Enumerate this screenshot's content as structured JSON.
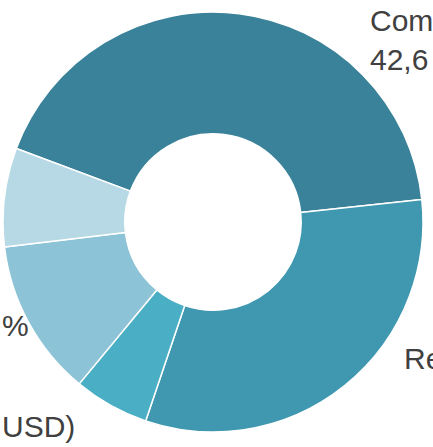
{
  "chart_data": {
    "type": "pie",
    "categories": [
      "Com",
      "Re",
      null,
      null,
      null
    ],
    "values": [
      42.6,
      31.9,
      5.8,
      12.1,
      7.6
    ],
    "value_labels": [
      "42,6",
      null,
      null,
      null,
      null
    ],
    "colors": [
      "#3a8299",
      "#3f98b0",
      "#4aaec4",
      "#8dc3d6",
      "#b7d9e6"
    ],
    "annotations": [
      "%",
      "USD)"
    ]
  }
}
